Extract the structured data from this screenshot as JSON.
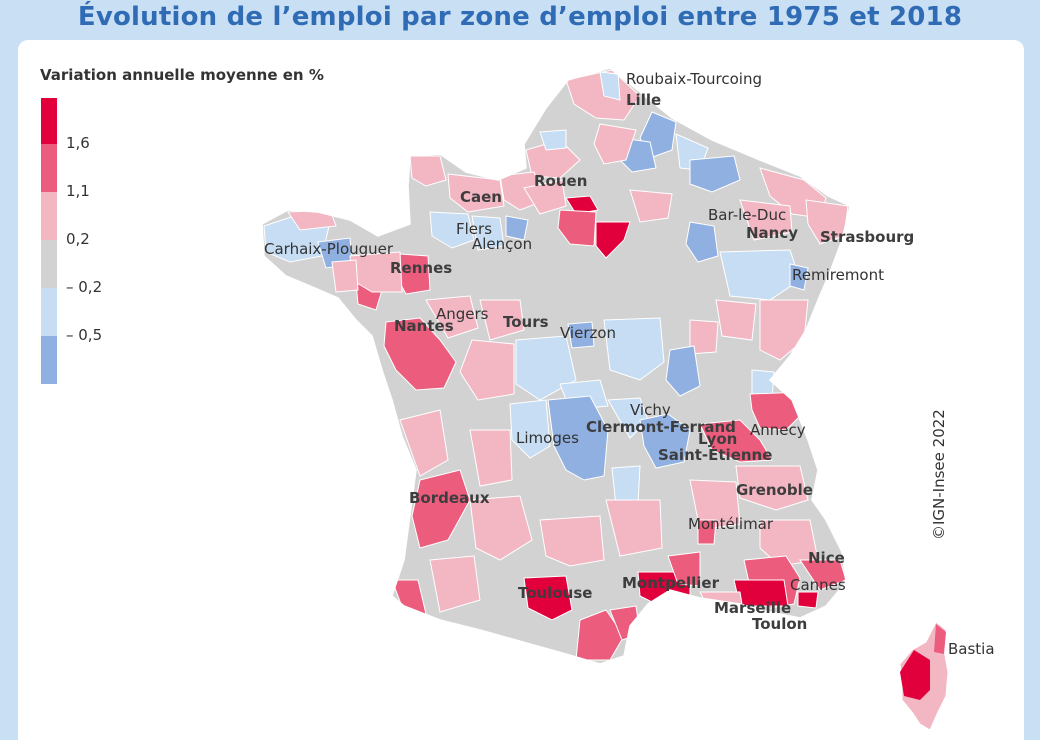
{
  "title": "Évolution de l’emploi par zone d’emploi entre 1975 et 2018",
  "legend": {
    "title": "Variation annuelle moyenne en %",
    "classes": [
      {
        "color": "#e1003c"
      },
      {
        "color": "#ec5c7d"
      },
      {
        "color": "#f3b6c3"
      },
      {
        "color": "#d2d2d2"
      },
      {
        "color": "#c6ddf3"
      },
      {
        "color": "#8fb0e1"
      }
    ],
    "breaks": [
      "1,6",
      "1,1",
      "0,2",
      "– 0,2",
      "– 0,5"
    ]
  },
  "colors": {
    "background": "#c9dff3",
    "title": "#2f6cb5",
    "panel": "#ffffff",
    "borders": "#ffffff"
  },
  "places": [
    {
      "id": "roubaix",
      "name": "Roubaix-Tourcoing",
      "bold": false
    },
    {
      "id": "lille",
      "name": "Lille",
      "bold": true
    },
    {
      "id": "rouen",
      "name": "Rouen",
      "bold": true
    },
    {
      "id": "caen",
      "name": "Caen",
      "bold": true
    },
    {
      "id": "bar-le-duc",
      "name": "Bar-le-Duc",
      "bold": false
    },
    {
      "id": "nancy",
      "name": "Nancy",
      "bold": true
    },
    {
      "id": "strasbourg",
      "name": "Strasbourg",
      "bold": true
    },
    {
      "id": "flers",
      "name": "Flers",
      "bold": false
    },
    {
      "id": "alencon",
      "name": "Alençon",
      "bold": false
    },
    {
      "id": "carhaix",
      "name": "Carhaix-Plouguer",
      "bold": false
    },
    {
      "id": "rennes",
      "name": "Rennes",
      "bold": true
    },
    {
      "id": "remiremont",
      "name": "Remiremont",
      "bold": false
    },
    {
      "id": "angers",
      "name": "Angers",
      "bold": false
    },
    {
      "id": "tours",
      "name": "Tours",
      "bold": true
    },
    {
      "id": "nantes",
      "name": "Nantes",
      "bold": true
    },
    {
      "id": "vierzon",
      "name": "Vierzon",
      "bold": false
    },
    {
      "id": "vichy",
      "name": "Vichy",
      "bold": false
    },
    {
      "id": "clermont",
      "name": "Clermont-Ferrand",
      "bold": true
    },
    {
      "id": "annecy",
      "name": "Annecy",
      "bold": false
    },
    {
      "id": "limoges",
      "name": "Limoges",
      "bold": false
    },
    {
      "id": "lyon",
      "name": "Lyon",
      "bold": true
    },
    {
      "id": "saint-etienne",
      "name": "Saint-Étienne",
      "bold": true
    },
    {
      "id": "grenoble",
      "name": "Grenoble",
      "bold": true
    },
    {
      "id": "bordeaux",
      "name": "Bordeaux",
      "bold": true
    },
    {
      "id": "montelimar",
      "name": "Montélimar",
      "bold": false
    },
    {
      "id": "nice",
      "name": "Nice",
      "bold": true
    },
    {
      "id": "cannes",
      "name": "Cannes",
      "bold": false
    },
    {
      "id": "montpellier",
      "name": "Montpellier",
      "bold": true
    },
    {
      "id": "toulouse",
      "name": "Toulouse",
      "bold": true
    },
    {
      "id": "marseille",
      "name": "Marseille",
      "bold": true
    },
    {
      "id": "toulon",
      "name": "Toulon",
      "bold": true
    },
    {
      "id": "bastia",
      "name": "Bastia",
      "bold": false
    }
  ],
  "copyright": "©IGN-Insee 2022"
}
